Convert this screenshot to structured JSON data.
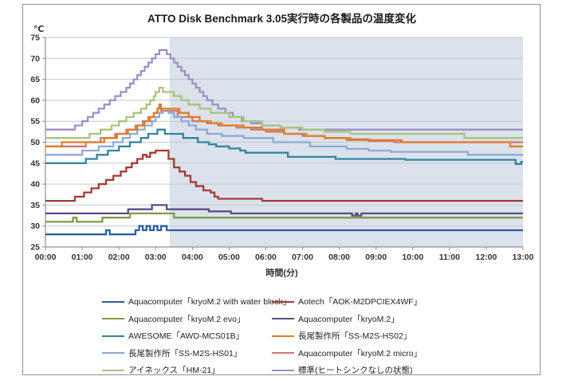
{
  "title": "ATTO Disk Benchmark 3.05実行時の各製品の温度変化",
  "y_axis": {
    "unit": "℃",
    "min": 25,
    "max": 75,
    "step": 5,
    "tick_labels": [
      "25",
      "30",
      "35",
      "40",
      "45",
      "50",
      "55",
      "60",
      "65",
      "70",
      "75"
    ]
  },
  "x_axis": {
    "title": "時間(分)",
    "labels": [
      "00:00",
      "01:00",
      "02:00",
      "03:00",
      "04:00",
      "05:00",
      "06:00",
      "07:00",
      "08:00",
      "09:00",
      "10:00",
      "11:00",
      "12:00",
      "13:00"
    ]
  },
  "shaded_region": {
    "start_min": 3.38,
    "end_min": 13,
    "color": "#dbe2ec"
  },
  "colors": {
    "gridline": "#c3c7ce",
    "axis": "#8f8f8f",
    "tick_text": "#333333",
    "frame": "#8f8f8f"
  },
  "legend": {
    "column_order": [
      [
        0,
        2,
        4,
        6,
        8
      ],
      [
        1,
        3,
        5,
        7,
        9
      ]
    ]
  },
  "chart_data": {
    "type": "line",
    "title": "ATTO Disk Benchmark 3.05実行時の各製品の温度変化",
    "xlabel": "時間(分)",
    "ylabel": "℃",
    "xlim": [
      0,
      13
    ],
    "ylim": [
      25,
      75
    ],
    "grid": true,
    "legend_position": "bottom",
    "interpolation": "step",
    "series": [
      {
        "name": "Aquacomputer「kryoM.2 with water block」",
        "color": "#2B5DA0",
        "points": [
          [
            0,
            28
          ],
          [
            1.6,
            28
          ],
          [
            1.65,
            29
          ],
          [
            1.75,
            28
          ],
          [
            2.35,
            28
          ],
          [
            2.45,
            29
          ],
          [
            2.55,
            30
          ],
          [
            2.65,
            29
          ],
          [
            2.75,
            30
          ],
          [
            2.85,
            29
          ],
          [
            2.95,
            30
          ],
          [
            3.05,
            29
          ],
          [
            3.15,
            30
          ],
          [
            3.3,
            29
          ],
          [
            13,
            29
          ]
        ]
      },
      {
        "name": "Aotech「AOK-M2DPCIEX4WF」",
        "color": "#A23B34",
        "points": [
          [
            0,
            36
          ],
          [
            0.55,
            36
          ],
          [
            0.8,
            37
          ],
          [
            1.05,
            38
          ],
          [
            1.25,
            39
          ],
          [
            1.45,
            40
          ],
          [
            1.65,
            41
          ],
          [
            1.85,
            42
          ],
          [
            2.05,
            43
          ],
          [
            2.2,
            44
          ],
          [
            2.35,
            45
          ],
          [
            2.5,
            46
          ],
          [
            2.65,
            47
          ],
          [
            2.75,
            46.5
          ],
          [
            2.85,
            47.5
          ],
          [
            3.0,
            48
          ],
          [
            3.25,
            48
          ],
          [
            3.35,
            46
          ],
          [
            3.5,
            44
          ],
          [
            3.65,
            43
          ],
          [
            3.8,
            42
          ],
          [
            3.95,
            40.5
          ],
          [
            4.1,
            39.5
          ],
          [
            4.3,
            38.5
          ],
          [
            4.5,
            38
          ],
          [
            4.6,
            37
          ],
          [
            4.7,
            36.5
          ],
          [
            5.85,
            36.5
          ],
          [
            5.9,
            36
          ],
          [
            13,
            36
          ]
        ]
      },
      {
        "name": "Aquacomputer「kryoM.2 evo」",
        "color": "#7E9B46",
        "points": [
          [
            0,
            31
          ],
          [
            0.7,
            31
          ],
          [
            0.75,
            32
          ],
          [
            0.85,
            31
          ],
          [
            1.45,
            31
          ],
          [
            1.55,
            32
          ],
          [
            2.2,
            32
          ],
          [
            2.3,
            33
          ],
          [
            3.4,
            33
          ],
          [
            3.5,
            32
          ],
          [
            13,
            32
          ]
        ]
      },
      {
        "name": "Aquacomputer「kryoM.2」",
        "color": "#5D4B85",
        "points": [
          [
            0,
            33
          ],
          [
            2.1,
            33
          ],
          [
            2.25,
            34
          ],
          [
            2.75,
            34
          ],
          [
            2.9,
            35
          ],
          [
            3.2,
            35
          ],
          [
            3.3,
            34
          ],
          [
            4.35,
            34
          ],
          [
            4.45,
            33.5
          ],
          [
            4.95,
            33.5
          ],
          [
            5.05,
            33
          ],
          [
            8.3,
            33
          ],
          [
            8.35,
            32.5
          ],
          [
            8.45,
            33
          ],
          [
            8.5,
            32.5
          ],
          [
            8.6,
            33
          ],
          [
            13,
            33
          ]
        ]
      },
      {
        "name": "AWESOME「AWD-MCS01B」",
        "color": "#31859C",
        "points": [
          [
            0,
            45
          ],
          [
            0.9,
            45
          ],
          [
            1.1,
            46
          ],
          [
            1.4,
            47
          ],
          [
            1.7,
            48
          ],
          [
            2.0,
            49
          ],
          [
            2.3,
            50
          ],
          [
            2.6,
            51
          ],
          [
            2.8,
            52
          ],
          [
            3.0,
            52
          ],
          [
            3.05,
            53
          ],
          [
            3.2,
            53
          ],
          [
            3.25,
            52
          ],
          [
            3.6,
            52
          ],
          [
            3.75,
            51
          ],
          [
            4.15,
            50
          ],
          [
            4.45,
            49.5
          ],
          [
            4.65,
            49
          ],
          [
            5.0,
            48.5
          ],
          [
            5.3,
            48
          ],
          [
            5.45,
            47.5
          ],
          [
            6.5,
            47.5
          ],
          [
            6.6,
            46.5
          ],
          [
            7.8,
            46.5
          ],
          [
            7.9,
            46
          ],
          [
            9.7,
            46
          ],
          [
            9.8,
            45.8
          ],
          [
            12.7,
            45.8
          ],
          [
            12.8,
            44.8
          ],
          [
            12.95,
            45.3
          ],
          [
            13,
            45.3
          ]
        ]
      },
      {
        "name": "長尾製作所「SS-M2S-HS02」",
        "color": "#E07D28",
        "points": [
          [
            0,
            49
          ],
          [
            0.35,
            49
          ],
          [
            0.45,
            50
          ],
          [
            1.35,
            50
          ],
          [
            1.6,
            51
          ],
          [
            1.95,
            52
          ],
          [
            2.25,
            53
          ],
          [
            2.5,
            54
          ],
          [
            2.7,
            55
          ],
          [
            2.85,
            56
          ],
          [
            2.95,
            57
          ],
          [
            3.05,
            58
          ],
          [
            3.1,
            59
          ],
          [
            3.15,
            58
          ],
          [
            3.5,
            58
          ],
          [
            3.65,
            57
          ],
          [
            3.9,
            56
          ],
          [
            4.2,
            55
          ],
          [
            4.5,
            54.5
          ],
          [
            4.8,
            54
          ],
          [
            5.4,
            53.5
          ],
          [
            5.9,
            53
          ],
          [
            6.5,
            52
          ],
          [
            7.1,
            51.5
          ],
          [
            7.6,
            51
          ],
          [
            8.2,
            50.5
          ],
          [
            9.6,
            50.5
          ],
          [
            9.7,
            50
          ],
          [
            12.55,
            50
          ],
          [
            12.65,
            49
          ],
          [
            13,
            49
          ]
        ]
      },
      {
        "name": "長尾製作所「SS-M2S-HS01」",
        "color": "#8FA9D4",
        "points": [
          [
            0,
            47
          ],
          [
            0.7,
            47
          ],
          [
            1.0,
            48
          ],
          [
            1.45,
            49
          ],
          [
            1.85,
            50
          ],
          [
            2.1,
            51
          ],
          [
            2.3,
            52
          ],
          [
            2.5,
            53
          ],
          [
            2.7,
            54
          ],
          [
            2.9,
            55
          ],
          [
            3.0,
            56
          ],
          [
            3.1,
            57
          ],
          [
            3.2,
            58
          ],
          [
            3.35,
            57
          ],
          [
            3.5,
            56
          ],
          [
            3.7,
            55
          ],
          [
            3.9,
            54
          ],
          [
            4.1,
            53
          ],
          [
            4.4,
            52
          ],
          [
            4.8,
            51.5
          ],
          [
            5.4,
            51
          ],
          [
            6.2,
            50
          ],
          [
            7.2,
            49
          ],
          [
            8.2,
            48.4
          ],
          [
            8.8,
            48
          ],
          [
            9.4,
            47.7
          ],
          [
            11.4,
            47.7
          ],
          [
            11.5,
            47
          ],
          [
            13,
            47
          ]
        ]
      },
      {
        "name": "Aquacomputer「kryoM.2 micro」",
        "color": "#CD7871",
        "points": [
          [
            0,
            49
          ],
          [
            0.8,
            49
          ],
          [
            1.1,
            50
          ],
          [
            1.5,
            51
          ],
          [
            1.9,
            52
          ],
          [
            2.2,
            53
          ],
          [
            2.45,
            54
          ],
          [
            2.65,
            55
          ],
          [
            2.8,
            56
          ],
          [
            2.95,
            57
          ],
          [
            3.05,
            58
          ],
          [
            3.15,
            57.5
          ],
          [
            3.45,
            57.5
          ],
          [
            3.6,
            56
          ],
          [
            4.0,
            55
          ],
          [
            4.4,
            54.5
          ],
          [
            4.7,
            54
          ],
          [
            5.2,
            53.5
          ],
          [
            5.6,
            53
          ],
          [
            6.0,
            52.5
          ],
          [
            6.5,
            52
          ],
          [
            7.0,
            51.5
          ],
          [
            7.6,
            51
          ],
          [
            8.3,
            50.7
          ],
          [
            8.8,
            50.3
          ],
          [
            9.5,
            50
          ],
          [
            13,
            50
          ]
        ]
      },
      {
        "name": "アイネックス「HM-21」",
        "color": "#A9C37E",
        "points": [
          [
            0,
            51
          ],
          [
            0.9,
            51
          ],
          [
            1.2,
            52
          ],
          [
            1.5,
            53
          ],
          [
            1.8,
            54
          ],
          [
            2.0,
            55
          ],
          [
            2.2,
            56
          ],
          [
            2.4,
            57
          ],
          [
            2.6,
            58
          ],
          [
            2.75,
            59
          ],
          [
            2.85,
            60
          ],
          [
            2.95,
            61
          ],
          [
            3.0,
            62
          ],
          [
            3.1,
            63
          ],
          [
            3.2,
            62
          ],
          [
            3.4,
            62
          ],
          [
            3.5,
            61
          ],
          [
            3.7,
            60
          ],
          [
            3.9,
            59
          ],
          [
            4.2,
            58
          ],
          [
            4.5,
            57
          ],
          [
            5.0,
            56
          ],
          [
            5.4,
            55
          ],
          [
            5.9,
            54
          ],
          [
            6.4,
            53.5
          ],
          [
            7.0,
            53
          ],
          [
            7.6,
            52.5
          ],
          [
            8.3,
            52
          ],
          [
            11.3,
            52
          ],
          [
            11.4,
            51
          ],
          [
            13,
            51
          ]
        ]
      },
      {
        "name": "標準(ヒートシンクなしの状態)",
        "color": "#9C90C3",
        "points": [
          [
            0,
            53
          ],
          [
            0.6,
            53
          ],
          [
            0.8,
            54
          ],
          [
            1.0,
            55
          ],
          [
            1.15,
            56
          ],
          [
            1.3,
            57
          ],
          [
            1.45,
            58
          ],
          [
            1.6,
            59
          ],
          [
            1.75,
            60
          ],
          [
            1.9,
            61
          ],
          [
            2.05,
            62
          ],
          [
            2.2,
            63
          ],
          [
            2.3,
            64
          ],
          [
            2.4,
            65
          ],
          [
            2.5,
            66
          ],
          [
            2.6,
            67
          ],
          [
            2.7,
            68
          ],
          [
            2.8,
            69
          ],
          [
            2.9,
            70
          ],
          [
            3.0,
            71
          ],
          [
            3.1,
            72
          ],
          [
            3.25,
            72
          ],
          [
            3.3,
            71
          ],
          [
            3.4,
            70
          ],
          [
            3.5,
            69
          ],
          [
            3.6,
            68
          ],
          [
            3.7,
            67
          ],
          [
            3.8,
            66
          ],
          [
            3.9,
            65
          ],
          [
            4.0,
            64
          ],
          [
            4.1,
            63
          ],
          [
            4.2,
            62
          ],
          [
            4.3,
            61
          ],
          [
            4.4,
            60
          ],
          [
            4.55,
            59
          ],
          [
            4.7,
            58
          ],
          [
            4.9,
            57
          ],
          [
            5.1,
            56
          ],
          [
            5.35,
            55
          ],
          [
            5.6,
            54.5
          ],
          [
            5.9,
            54
          ],
          [
            6.4,
            53.5
          ],
          [
            6.9,
            53
          ],
          [
            13,
            53
          ]
        ]
      }
    ]
  }
}
